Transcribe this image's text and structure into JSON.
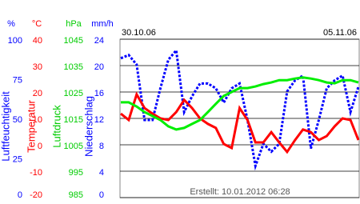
{
  "chart_data": {
    "type": "line",
    "date_start": "30.10.06",
    "date_end": "05.11.06",
    "footer": "Erstellt: 10.01.2012 06:28",
    "axes": [
      {
        "unit": "%",
        "label": "Luftfeuchtigkeit",
        "color": "#0000ff",
        "ylim": [
          0,
          100
        ],
        "yticks": [
          100,
          75,
          50,
          25,
          0
        ]
      },
      {
        "unit": "°C",
        "label": "Temperatur",
        "color": "#ff0000",
        "ylim": [
          -20,
          40
        ],
        "yticks": [
          40,
          30,
          20,
          10,
          0,
          -10,
          -20
        ],
        "grid": true
      },
      {
        "unit": "hPa",
        "label": "Luftdruck",
        "color": "#00cc00",
        "ylim": [
          985,
          1045
        ],
        "yticks": [
          1045,
          1035,
          1025,
          1015,
          1005,
          995,
          985
        ]
      },
      {
        "unit": "mm/h",
        "label": "Niederschlag",
        "color": "#0000ff",
        "ylim": [
          0,
          24
        ],
        "yticks": [
          24,
          20,
          16,
          12,
          8,
          4,
          0
        ]
      }
    ],
    "series": [
      {
        "name": "Luftfeuchtigkeit",
        "axis": 0,
        "color": "#0000ff",
        "dashed": true,
        "values": [
          88,
          90,
          84,
          49,
          49,
          69,
          87,
          93,
          54,
          64,
          72,
          72,
          69,
          60,
          69,
          72,
          49,
          20,
          34,
          29,
          34,
          67,
          74,
          77,
          31,
          49,
          69,
          74,
          77,
          54,
          70
        ]
      },
      {
        "name": "Temperatur",
        "axis": 1,
        "color": "#ff0000",
        "values": [
          11.8,
          9.4,
          19.1,
          13.9,
          11.8,
          10,
          9.4,
          12.4,
          17,
          13.9,
          10,
          7.9,
          6.4,
          0.3,
          -1.2,
          13.9,
          9.4,
          0.9,
          0.9,
          4.8,
          0.9,
          -2.7,
          1.8,
          5.8,
          4.8,
          1.8,
          3.3,
          7,
          10,
          9.4,
          1.8
        ]
      },
      {
        "name": "Luftdruck",
        "axis": 2,
        "color": "#00ee00",
        "values": [
          1021.1,
          1021.1,
          1019.5,
          1017.4,
          1015.9,
          1014.4,
          1012,
          1010.8,
          1011.4,
          1012.9,
          1014.4,
          1017.4,
          1020.5,
          1023.5,
          1025,
          1026.5,
          1026.5,
          1027.1,
          1028,
          1028.6,
          1029.5,
          1029.5,
          1030.1,
          1030.5,
          1030.1,
          1029.5,
          1028.6,
          1028.3,
          1029.5,
          1029.5,
          1028.6
        ]
      }
    ]
  }
}
